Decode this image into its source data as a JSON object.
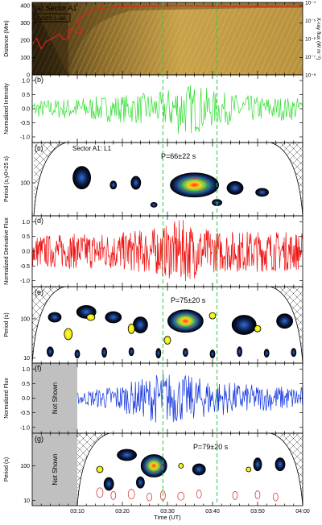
{
  "figure": {
    "time_axis": {
      "label": "Time (UT)",
      "ticks": [
        "03:10",
        "03:20",
        "03:30",
        "03:40",
        "03:50",
        "04:00"
      ],
      "range_minutes": [
        0,
        60
      ],
      "range_labels": [
        "03:00",
        "04:00"
      ],
      "marker_times": [
        "03:29",
        "03:41"
      ],
      "marker_color": "#2ecc40"
    },
    "panels": [
      {
        "id": "a",
        "label": "(a) Sector A1",
        "type": "distance-time map with X-ray flux overlay",
        "ylabel": "Distance (Mm)",
        "yticks": [
          "0",
          "100",
          "200",
          "300",
          "400"
        ],
        "y2label": "X-ray flux (W m⁻²)",
        "y2ticks": [
          "10⁻⁸",
          "10⁻⁷",
          "10⁻⁶",
          "10⁻⁵",
          "10⁻⁴"
        ],
        "legend": "GOES 1–8Å",
        "legend_color": "#e02020"
      },
      {
        "id": "b",
        "label": "(b)",
        "type": "line",
        "ylabel": "Normalized Intensity",
        "yticks": [
          "-1.0",
          "-0.5",
          "0.0",
          "0.5",
          "1.0"
        ],
        "ylim": [
          -1.2,
          1.2
        ],
        "color": "#33dd33"
      },
      {
        "id": "c",
        "label": "(c)",
        "annotation": "Sector A1: L1",
        "period_text": "P=66±22 s",
        "type": "wavelet power spectrum",
        "ylabel": "Period (s,y0=25 s)",
        "yticks": [
          "100"
        ]
      },
      {
        "id": "d",
        "label": "(d)",
        "type": "line",
        "ylabel": "Normalized Derivative Flux",
        "yticks": [
          "-1.0",
          "-0.5",
          "0.0",
          "0.5",
          "1.0"
        ],
        "ylim": [
          -1.2,
          1.2
        ],
        "color": "#ee1111"
      },
      {
        "id": "e",
        "label": "(e)",
        "period_text": "P=75±20 s",
        "type": "wavelet power spectrum",
        "ylabel": "Period (s)",
        "yticks": [
          "10",
          "100"
        ]
      },
      {
        "id": "f",
        "label": "(f)",
        "type": "line",
        "ylabel": "Normalized Flux",
        "yticks": [
          "-1.0",
          "-0.5",
          "0.0",
          "0.5",
          "1.0"
        ],
        "ylim": [
          -1.2,
          1.2
        ],
        "color": "#1133dd",
        "not_shown_text": "Not Shown"
      },
      {
        "id": "g",
        "label": "(g)",
        "period_text": "P=79±20 s",
        "type": "wavelet power spectrum",
        "ylabel": "Period (s)",
        "yticks": [
          "10",
          "100"
        ],
        "not_shown_text": "Not Shown"
      }
    ]
  },
  "chart_data": [
    {
      "type": "line",
      "panel": "a",
      "series": [
        {
          "name": "GOES 1–8Å",
          "color": "#e02020",
          "x": [
            "03:00",
            "03:05",
            "03:08",
            "03:10",
            "03:12",
            "03:14",
            "03:16",
            "03:18",
            "03:20",
            "03:25",
            "03:30",
            "03:35",
            "03:40",
            "03:45",
            "03:50",
            "03:55",
            "04:00"
          ],
          "y": [
            5e-07,
            1.2e-06,
            3e-06,
            1e-05,
            2.5e-05,
            4e-05,
            5e-05,
            5.5e-05,
            6e-05,
            6.3e-05,
            6.5e-05,
            6.5e-05,
            6.3e-05,
            6.1e-05,
            5.9e-05,
            5.7e-05,
            5.5e-05
          ]
        }
      ],
      "ylim": [
        1e-08,
        0.0001
      ],
      "yscale": "log"
    },
    {
      "type": "line",
      "panel": "b",
      "xlim": [
        "03:00",
        "04:00"
      ],
      "ylim": [
        -1.2,
        1.2
      ],
      "series": [
        {
          "color": "#33dd33",
          "amplitude_envelope": [
            [
              0,
              0.3
            ],
            [
              10,
              0.4
            ],
            [
              20,
              0.5
            ],
            [
              29,
              0.6
            ],
            [
              33,
              1.0
            ],
            [
              38,
              0.8
            ],
            [
              41,
              0.6
            ],
            [
              50,
              0.45
            ],
            [
              60,
              0.4
            ]
          ]
        }
      ]
    },
    {
      "type": "line",
      "panel": "d",
      "xlim": [
        "03:00",
        "04:00"
      ],
      "ylim": [
        -1.2,
        1.2
      ],
      "series": [
        {
          "color": "#ee1111",
          "amplitude_envelope": [
            [
              0,
              0.55
            ],
            [
              10,
              0.6
            ],
            [
              20,
              0.65
            ],
            [
              29,
              0.85
            ],
            [
              33,
              1.1
            ],
            [
              38,
              0.8
            ],
            [
              41,
              0.7
            ],
            [
              50,
              0.7
            ],
            [
              60,
              0.65
            ]
          ]
        }
      ]
    },
    {
      "type": "line",
      "panel": "f",
      "xlim": [
        "03:00",
        "04:00"
      ],
      "ylim": [
        -1.2,
        1.2
      ],
      "series": [
        {
          "color": "#1133dd",
          "amplitude_envelope": [
            [
              10,
              0.2
            ],
            [
              20,
              0.5
            ],
            [
              25,
              0.7
            ],
            [
              29,
              0.95
            ],
            [
              34,
              0.8
            ],
            [
              41,
              0.6
            ],
            [
              50,
              0.45
            ],
            [
              60,
              0.4
            ]
          ]
        }
      ]
    }
  ]
}
